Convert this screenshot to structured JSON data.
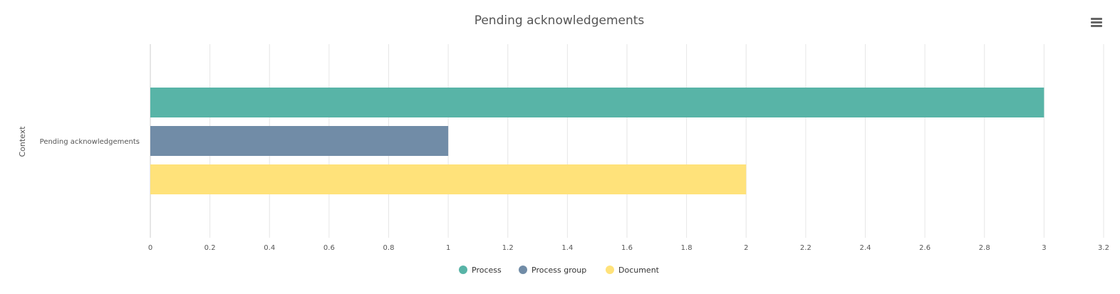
{
  "chart_data": {
    "type": "bar",
    "orientation": "horizontal",
    "title": "Pending acknowledgements",
    "ylabel": "Context",
    "xlabel": "",
    "categories": [
      "Pending acknowledgements"
    ],
    "series": [
      {
        "name": "Process",
        "values": [
          3
        ],
        "color": "#58b4a7"
      },
      {
        "name": "Process group",
        "values": [
          1
        ],
        "color": "#718ca7"
      },
      {
        "name": "Document",
        "values": [
          2
        ],
        "color": "#ffe27a"
      }
    ],
    "xlim": [
      0,
      3.2
    ],
    "xticks": [
      0,
      0.2,
      0.4,
      0.6,
      0.8,
      1,
      1.2,
      1.4,
      1.6,
      1.8,
      2,
      2.2,
      2.4,
      2.6,
      2.8,
      3,
      3.2
    ],
    "grid": true,
    "legend": "bottom-center"
  },
  "toolbar": {
    "menu_icon": "hamburger-menu-icon"
  }
}
